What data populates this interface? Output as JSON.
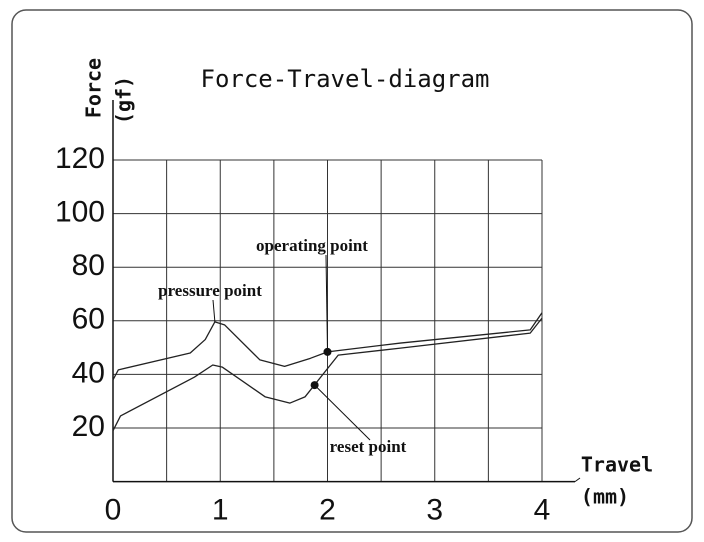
{
  "chart_data": {
    "type": "line",
    "title": "Force-Travel-diagram",
    "y_label": [
      "Force",
      "(gf)"
    ],
    "x_label": [
      "Travel",
      "(mm)"
    ],
    "xlim": [
      0,
      4
    ],
    "xticks": [
      0,
      1,
      2,
      3,
      4
    ],
    "ylim": [
      0,
      120
    ],
    "yticks": [
      20,
      40,
      60,
      80,
      100,
      120
    ],
    "grid": true,
    "series": [
      {
        "color": "#222222",
        "x": [
          0,
          0.05,
          0.72,
          0.86,
          0.95,
          1.04,
          1.37,
          1.6,
          1.84,
          2.0,
          2.68,
          3.89,
          4
        ],
        "values": [
          38,
          41.7,
          48,
          53,
          59.6,
          58.5,
          45.4,
          43,
          46,
          48.4,
          51.7,
          56.6,
          63
        ]
      },
      {
        "color": "#222222",
        "x": [
          0,
          0.07,
          0.76,
          0.93,
          1.02,
          1.42,
          1.65,
          1.79,
          2.1,
          2.68,
          3.89,
          4
        ],
        "values": [
          19,
          24.5,
          39,
          43.5,
          42.7,
          31.6,
          29.3,
          31.6,
          47.2,
          49.8,
          55.4,
          61
        ]
      }
    ],
    "annotations": [
      {
        "text": "pressure point",
        "x": 0.95,
        "y": 59.6
      },
      {
        "text": "operating point",
        "x": 2.0,
        "y": 48.4
      },
      {
        "text": "reset point",
        "x": 1.88,
        "y": 36
      }
    ]
  }
}
